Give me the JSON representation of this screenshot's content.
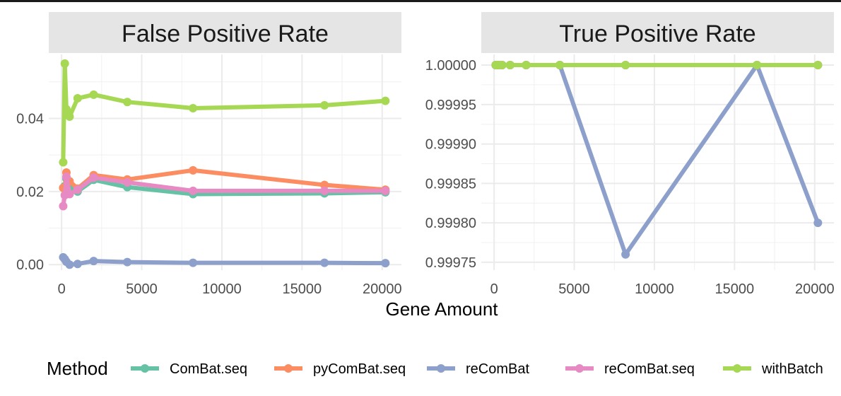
{
  "chart_data": {
    "type": "line",
    "xlabel": "Gene Amount",
    "legend": {
      "title": "Method",
      "position": "bottom"
    },
    "colors": {
      "ComBat.seq": "#66c2a5",
      "pyComBat.seq": "#fc8d62",
      "reComBat": "#8da0cb",
      "reComBat.seq": "#e78ac3",
      "withBatch": "#a6d854"
    },
    "panels": [
      {
        "title": "False Positive Rate",
        "xlim": [
          -800,
          21200
        ],
        "ylim": [
          -0.0015,
          0.0575
        ],
        "xticks": [
          0,
          5000,
          10000,
          15000,
          20000
        ],
        "xtick_labels": [
          "0",
          "5000",
          "10000",
          "15000",
          "20000"
        ],
        "yticks": [
          0,
          0.02,
          0.04
        ],
        "ytick_labels": [
          "0.00",
          "0.02",
          "0.04"
        ],
        "series": [
          {
            "name": "ComBat.seq",
            "points": [
              [
                100,
                0.021
              ],
              [
                200,
                0.0215
              ],
              [
                300,
                0.0235
              ],
              [
                500,
                0.021
              ],
              [
                1000,
                0.02
              ],
              [
                2000,
                0.0232
              ],
              [
                4100,
                0.0212
              ],
              [
                8200,
                0.0193
              ],
              [
                16400,
                0.0195
              ],
              [
                20200,
                0.0198
              ]
            ]
          },
          {
            "name": "pyComBat.seq",
            "points": [
              [
                100,
                0.021
              ],
              [
                200,
                0.0212
              ],
              [
                300,
                0.0252
              ],
              [
                500,
                0.0228
              ],
              [
                1000,
                0.0208
              ],
              [
                2000,
                0.0245
              ],
              [
                4100,
                0.0233
              ],
              [
                8200,
                0.0258
              ],
              [
                16400,
                0.0218
              ],
              [
                20200,
                0.0205
              ]
            ]
          },
          {
            "name": "reComBat",
            "points": [
              [
                100,
                0.002
              ],
              [
                200,
                0.0015
              ],
              [
                300,
                0.0008
              ],
              [
                500,
                0.0
              ],
              [
                1000,
                0.0002
              ],
              [
                2000,
                0.001
              ],
              [
                4100,
                0.0007
              ],
              [
                8200,
                0.0005
              ],
              [
                16400,
                0.0005
              ],
              [
                20200,
                0.0004
              ]
            ]
          },
          {
            "name": "reComBat.seq",
            "points": [
              [
                100,
                0.016
              ],
              [
                200,
                0.019
              ],
              [
                300,
                0.024
              ],
              [
                500,
                0.0193
              ],
              [
                1000,
                0.0205
              ],
              [
                2000,
                0.0238
              ],
              [
                4100,
                0.0225
              ],
              [
                8200,
                0.0202
              ],
              [
                16400,
                0.0202
              ],
              [
                20200,
                0.0202
              ]
            ]
          },
          {
            "name": "withBatch",
            "points": [
              [
                100,
                0.028
              ],
              [
                200,
                0.055
              ],
              [
                300,
                0.0425
              ],
              [
                500,
                0.0405
              ],
              [
                1000,
                0.0455
              ],
              [
                2000,
                0.0465
              ],
              [
                4100,
                0.0445
              ],
              [
                8200,
                0.0428
              ],
              [
                16400,
                0.0436
              ],
              [
                20200,
                0.0448
              ]
            ]
          }
        ]
      },
      {
        "title": "True Positive Rate",
        "xlim": [
          -800,
          21200
        ],
        "ylim": [
          0.99974,
          1.0000135
        ],
        "xticks": [
          0,
          5000,
          10000,
          15000,
          20000
        ],
        "xtick_labels": [
          "0",
          "5000",
          "10000",
          "15000",
          "20000"
        ],
        "yticks": [
          0.99975,
          0.9998,
          0.99985,
          0.9999,
          0.99995,
          1.0
        ],
        "ytick_labels": [
          "0.99975",
          "0.99980",
          "0.99985",
          "0.99990",
          "0.99995",
          "1.00000"
        ],
        "series": [
          {
            "name": "ComBat.seq",
            "points": [
              [
                100,
                1
              ],
              [
                200,
                1
              ],
              [
                300,
                1
              ],
              [
                500,
                1
              ],
              [
                1000,
                1
              ],
              [
                2000,
                1
              ],
              [
                4100,
                1
              ],
              [
                8200,
                1
              ],
              [
                16400,
                1
              ],
              [
                20200,
                1
              ]
            ]
          },
          {
            "name": "pyComBat.seq",
            "points": [
              [
                100,
                1
              ],
              [
                200,
                1
              ],
              [
                300,
                1
              ],
              [
                500,
                1
              ],
              [
                1000,
                1
              ],
              [
                2000,
                1
              ],
              [
                4100,
                1
              ],
              [
                8200,
                1
              ],
              [
                16400,
                1
              ],
              [
                20200,
                1
              ]
            ]
          },
          {
            "name": "reComBat",
            "points": [
              [
                100,
                1
              ],
              [
                200,
                1
              ],
              [
                300,
                1
              ],
              [
                500,
                1
              ],
              [
                1000,
                1
              ],
              [
                2000,
                1
              ],
              [
                4100,
                1
              ],
              [
                8200,
                0.99976
              ],
              [
                16400,
                1
              ],
              [
                20200,
                0.9998
              ]
            ]
          },
          {
            "name": "reComBat.seq",
            "points": [
              [
                100,
                1
              ],
              [
                200,
                1
              ],
              [
                300,
                1
              ],
              [
                500,
                1
              ],
              [
                1000,
                1
              ],
              [
                2000,
                1
              ],
              [
                4100,
                1
              ],
              [
                8200,
                1
              ],
              [
                16400,
                1
              ],
              [
                20200,
                1
              ]
            ]
          },
          {
            "name": "withBatch",
            "points": [
              [
                100,
                1
              ],
              [
                200,
                1
              ],
              [
                300,
                1
              ],
              [
                500,
                1
              ],
              [
                1000,
                1
              ],
              [
                2000,
                1
              ],
              [
                4100,
                1
              ],
              [
                8200,
                1
              ],
              [
                16400,
                1
              ],
              [
                20200,
                1
              ]
            ]
          }
        ]
      }
    ]
  }
}
